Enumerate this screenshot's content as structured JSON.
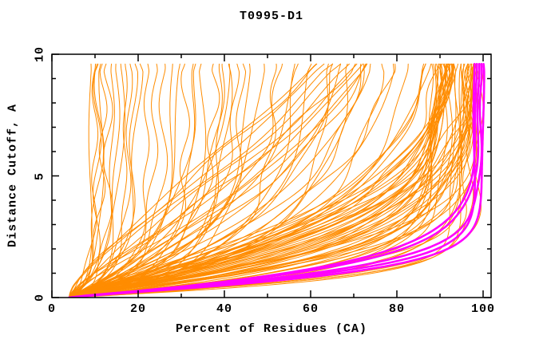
{
  "chart_data": {
    "type": "line",
    "title": "T0995-D1",
    "xlabel": "Percent of Residues (CA)",
    "ylabel": "Distance Cutoff, A",
    "xlim": [
      0,
      102
    ],
    "ylim": [
      0,
      10
    ],
    "x_ticks": [
      0,
      20,
      40,
      60,
      80,
      100
    ],
    "x_minor_step": 10,
    "y_ticks": [
      0,
      5,
      10
    ],
    "y_minor_step": 1,
    "grid": false,
    "legend": false,
    "background_color": "#ffffff",
    "axis_color": "#000000",
    "series_colors": {
      "models": "#ff8c00",
      "highlighted_models": "#ff00ff"
    },
    "curve_model": {
      "description": "Each curve: percent(y) = x0 + (cap - x0) * (1 - exp(-(y/k)^p)) for y in [0, y_top]; params listed as [cap, k, p]",
      "x0": 4,
      "y_top": 9.65,
      "clamp_max_percent": 100.3
    },
    "series": [
      {
        "name": "models",
        "color": "#ff8c00",
        "width": 1,
        "params": [
          [
            9,
            0.6,
            0.85
          ],
          [
            10,
            1.0,
            0.9
          ],
          [
            10.5,
            0.5,
            0.8
          ],
          [
            11,
            1.3,
            0.95
          ],
          [
            11.5,
            0.8,
            0.85
          ],
          [
            12,
            1.6,
            1.0
          ],
          [
            13,
            0.7,
            0.9
          ],
          [
            14,
            1.1,
            0.95
          ],
          [
            15,
            0.9,
            0.85
          ],
          [
            16,
            1.4,
            1.0
          ],
          [
            17,
            0.8,
            0.9
          ],
          [
            18,
            1.2,
            0.95
          ],
          [
            19,
            1.0,
            0.85
          ],
          [
            20,
            1.5,
            1.0
          ],
          [
            22,
            0.9,
            0.9
          ],
          [
            24,
            1.3,
            0.95
          ],
          [
            26,
            1.1,
            0.9
          ],
          [
            28,
            1.2,
            0.9
          ],
          [
            30,
            2.0,
            1.0
          ],
          [
            31,
            0.9,
            0.85
          ],
          [
            33,
            1.5,
            0.95
          ],
          [
            34,
            2.4,
            1.05
          ],
          [
            35,
            1.1,
            0.9
          ],
          [
            38,
            1.6,
            0.95
          ],
          [
            39,
            1.0,
            0.85
          ],
          [
            40,
            2.2,
            1.0
          ],
          [
            41,
            1.4,
            0.9
          ],
          [
            42,
            2.8,
            1.05
          ],
          [
            43,
            1.8,
            0.95
          ],
          [
            44,
            1.2,
            0.9
          ],
          [
            46,
            2.0,
            1.0
          ],
          [
            50,
            2.5,
            1.0
          ],
          [
            52,
            1.5,
            0.9
          ],
          [
            55,
            3.0,
            1.05
          ],
          [
            57,
            2.0,
            0.95
          ],
          [
            60,
            3.5,
            1.1
          ],
          [
            62,
            2.6,
            1.0
          ],
          [
            65,
            1.8,
            0.9
          ],
          [
            68,
            3.0,
            1.0
          ],
          [
            70,
            2.2,
            0.95
          ],
          [
            72,
            4.0,
            1.1
          ],
          [
            74,
            2.8,
            1.0
          ],
          [
            76,
            3.4,
            1.05
          ],
          [
            78,
            2.4,
            0.95
          ],
          [
            80,
            4.2,
            1.1
          ],
          [
            82,
            3.0,
            1.0
          ],
          [
            84,
            3.6,
            1.05
          ],
          [
            85,
            2.6,
            0.95
          ],
          [
            95,
            7,
            1.1
          ],
          [
            100,
            8,
            1.15
          ],
          [
            105,
            9,
            1.2
          ],
          [
            110,
            10,
            1.2
          ],
          [
            115,
            11,
            1.25
          ],
          [
            120,
            12,
            1.25
          ],
          [
            125,
            13,
            1.3
          ],
          [
            90,
            6,
            1.05
          ],
          [
            130,
            14,
            1.3
          ],
          [
            140,
            15,
            1.35
          ],
          [
            98,
            7.5,
            1.1
          ],
          [
            108,
            9.5,
            1.2
          ],
          [
            88,
            1.0,
            1.0
          ],
          [
            89,
            1.4,
            1.05
          ],
          [
            90,
            1.8,
            1.1
          ],
          [
            91,
            2.2,
            1.15
          ],
          [
            92,
            2.6,
            1.2
          ],
          [
            93,
            3.0,
            1.25
          ],
          [
            94,
            3.4,
            1.3
          ],
          [
            95,
            0.9,
            0.95
          ],
          [
            96,
            1.3,
            1.0
          ],
          [
            97,
            1.7,
            1.05
          ],
          [
            98,
            2.1,
            1.1
          ],
          [
            99,
            2.5,
            1.15
          ],
          [
            100,
            2.9,
            1.2
          ],
          [
            100.5,
            3.3,
            1.25
          ],
          [
            88.5,
            1.1,
            1.05
          ],
          [
            89.5,
            1.5,
            1.1
          ],
          [
            90.5,
            1.9,
            1.15
          ],
          [
            91.5,
            2.3,
            1.2
          ],
          [
            92.5,
            2.7,
            1.25
          ],
          [
            93.5,
            3.1,
            1.3
          ],
          [
            94.5,
            3.5,
            0.95
          ],
          [
            95.5,
            1.0,
            1.0
          ],
          [
            96.5,
            1.4,
            1.05
          ],
          [
            97.5,
            1.8,
            1.1
          ],
          [
            98.5,
            2.2,
            1.15
          ],
          [
            99.5,
            2.6,
            1.2
          ],
          [
            100.2,
            3.0,
            1.25
          ],
          [
            88.2,
            3.4,
            1.3
          ],
          [
            89.2,
            0.95,
            0.95
          ],
          [
            90.2,
            1.35,
            1.0
          ],
          [
            91.2,
            1.75,
            1.05
          ],
          [
            92.2,
            2.15,
            1.1
          ],
          [
            93.2,
            2.55,
            1.15
          ],
          [
            94.2,
            2.95,
            1.2
          ],
          [
            95.2,
            3.35,
            1.25
          ],
          [
            96.2,
            1.05,
            1.3
          ],
          [
            97.2,
            1.45,
            0.95
          ],
          [
            98.2,
            1.85,
            1.0
          ],
          [
            99.2,
            2.25,
            1.05
          ],
          [
            100.4,
            2.65,
            1.1
          ],
          [
            88.8,
            3.05,
            1.15
          ],
          [
            89.8,
            3.45,
            1.2
          ],
          [
            90.8,
            1.15,
            1.25
          ],
          [
            91.8,
            1.55,
            1.3
          ],
          [
            92.8,
            1.95,
            0.95
          ],
          [
            93.8,
            2.35,
            1.0
          ],
          [
            94.8,
            2.75,
            1.05
          ],
          [
            95.8,
            3.15,
            1.1
          ],
          [
            96.8,
            3.55,
            1.15
          ],
          [
            97.8,
            1.25,
            1.2
          ],
          [
            98.8,
            1.65,
            1.25
          ],
          [
            99.8,
            2.05,
            1.3
          ],
          [
            100.1,
            2.45,
            0.98
          ],
          [
            92.4,
            2.85,
            1.02
          ],
          [
            96.4,
            3.25,
            1.06
          ],
          [
            94.4,
            1.6,
            1.12
          ],
          [
            98.4,
            2.0,
            1.18
          ],
          [
            90.4,
            2.4,
            1.24
          ],
          [
            97,
            0.8,
            1.2
          ],
          [
            99,
            0.85,
            1.15
          ],
          [
            95,
            0.7,
            1.1
          ],
          [
            93,
            0.75,
            1.25
          ]
        ]
      },
      {
        "name": "highlighted_models",
        "color": "#ff00ff",
        "width": 2.6,
        "params": [
          [
            100,
            0.95,
            1.2
          ],
          [
            99.5,
            1.1,
            1.15
          ],
          [
            99,
            1.25,
            1.1
          ],
          [
            98.5,
            1.3,
            1.08
          ],
          [
            98,
            1.0,
            1.25
          ]
        ]
      }
    ]
  }
}
